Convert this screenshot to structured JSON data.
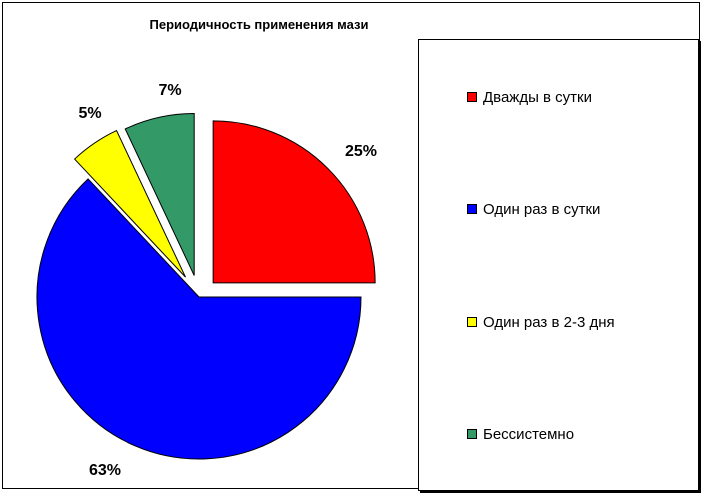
{
  "chart_data": {
    "type": "pie",
    "title": "Периодичность применения мази",
    "categories": [
      "Дважды в сутки",
      "Один раз в сутки",
      "Один раз в 2-3 дня",
      "Бессистемно"
    ],
    "values": [
      25,
      63,
      5,
      7
    ],
    "labels": [
      "25%",
      "63%",
      "5%",
      "7%"
    ],
    "colors": [
      "#ff0000",
      "#0000ff",
      "#ffff00",
      "#339966"
    ],
    "legend_position": "right"
  }
}
